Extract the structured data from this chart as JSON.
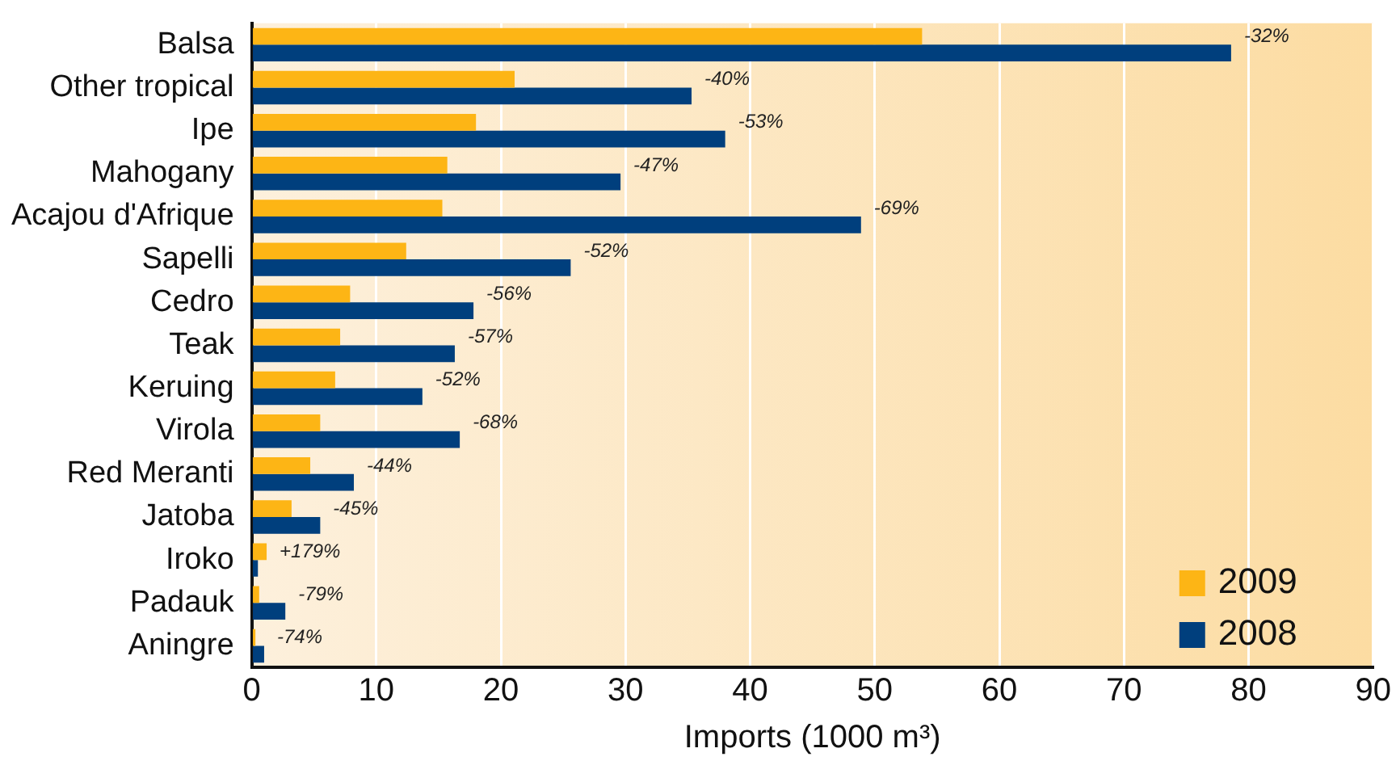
{
  "chart_data": {
    "type": "bar",
    "orientation": "horizontal",
    "categories": [
      "Balsa",
      "Other tropical",
      "Ipe",
      "Mahogany",
      "Acajou d'Afrique",
      "Sapelli",
      "Cedro",
      "Teak",
      "Keruing",
      "Virola",
      "Red Meranti",
      "Jatoba",
      "Iroko",
      "Padauk",
      "Aningre"
    ],
    "series": [
      {
        "name": "2009",
        "color": "#fdb515",
        "values": [
          53.8,
          21.1,
          18.0,
          15.7,
          15.3,
          12.4,
          7.9,
          7.1,
          6.7,
          5.5,
          4.7,
          3.2,
          1.2,
          0.6,
          0.3
        ]
      },
      {
        "name": "2008",
        "color": "#003f7d",
        "values": [
          78.6,
          35.3,
          38.0,
          29.6,
          48.9,
          25.6,
          17.8,
          16.3,
          13.7,
          16.7,
          8.2,
          5.5,
          0.5,
          2.7,
          1.0
        ]
      }
    ],
    "xlim": [
      0,
      90
    ],
    "xticks": [
      0,
      10,
      20,
      30,
      40,
      50,
      60,
      70,
      80,
      90
    ],
    "xlabel": "Imports (1000 m³)",
    "grid": "x",
    "legend": "bottom right",
    "annotations": [
      {
        "text": "-32%",
        "x": 78.6,
        "y": "Balsa"
      },
      {
        "text": "-40%",
        "x": 35.3,
        "y": "Other tropical"
      },
      {
        "text": "-53%",
        "x": 38.0,
        "y": "Ipe"
      },
      {
        "text": "-47%",
        "x": 29.6,
        "y": "Mahogany"
      },
      {
        "text": "-69%",
        "x": 48.9,
        "y": "Acajou d'Afrique"
      },
      {
        "text": "-52%",
        "x": 25.6,
        "y": "Sapelli"
      },
      {
        "text": "-56%",
        "x": 17.8,
        "y": "Cedro"
      },
      {
        "text": "-57%",
        "x": 16.3,
        "y": "Teak"
      },
      {
        "text": "-52%",
        "x": 13.7,
        "y": "Keruing"
      },
      {
        "text": "-68%",
        "x": 16.7,
        "y": "Virola"
      },
      {
        "text": "-44%",
        "x": 8.2,
        "y": "Red Meranti"
      },
      {
        "text": "-45%",
        "x": 5.5,
        "y": "Jatoba"
      },
      {
        "text": "+179%",
        "x": 1.2,
        "y": "Iroko"
      },
      {
        "text": "-79%",
        "x": 2.7,
        "y": "Padauk"
      },
      {
        "text": "-74%",
        "x": 1.0,
        "y": "Aningre"
      }
    ]
  }
}
